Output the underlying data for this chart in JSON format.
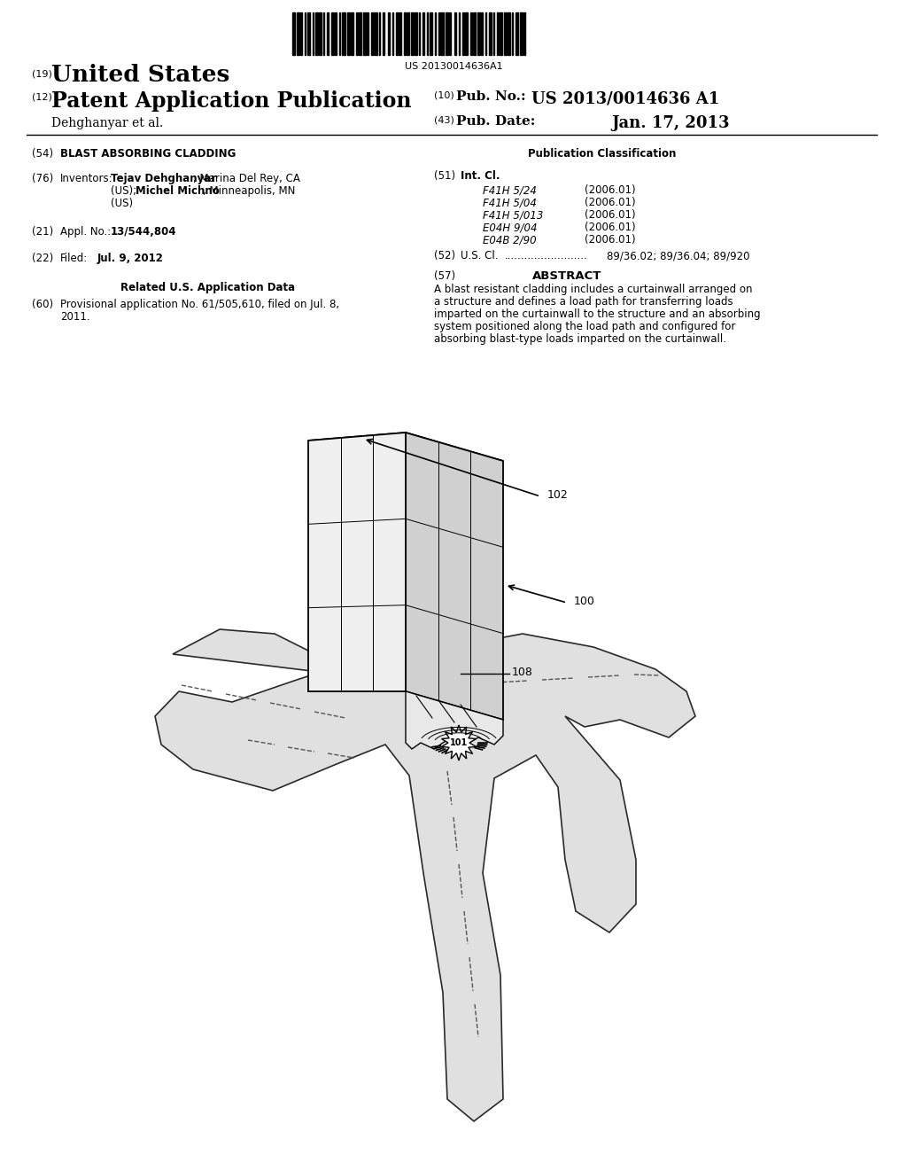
{
  "bg_color": "#ffffff",
  "barcode_text": "US 20130014636A1",
  "header_us": "United States",
  "header_patent": "Patent Application Publication",
  "header_pub_no": "US 2013/0014636 A1",
  "header_author": "Dehghanyar et al.",
  "header_date": "Jan. 17, 2013",
  "field54_title": "BLAST ABSORBING CLADDING",
  "pub_class_title": "Publication Classification",
  "field76_inv1_bold": "Tejav Dehghanyar",
  "field76_inv1_rest": ", Marina Del Rey, CA",
  "field76_inv2_pre": "(US); ",
  "field76_inv2_bold": "Michel Michno",
  "field76_inv2_rest": ", Minneapolis, MN",
  "field76_inv3": "(US)",
  "field51_classes": [
    [
      "F41H 5/24",
      "(2006.01)"
    ],
    [
      "F41H 5/04",
      "(2006.01)"
    ],
    [
      "F41H 5/013",
      "(2006.01)"
    ],
    [
      "E04H 9/04",
      "(2006.01)"
    ],
    [
      "E04B 2/90",
      "(2006.01)"
    ]
  ],
  "field21_value": "13/544,804",
  "field52_value": "89/36.02; 89/36.04; 89/920",
  "field22_value": "Jul. 9, 2012",
  "field57_text": "A blast resistant cladding includes a curtainwall arranged on a structure and defines a load path for transferring loads imparted on the curtainwall to the structure and an absorbing system positioned along the load path and configured for absorbing blast-type loads imparted on the curtainwall.",
  "related_title": "Related U.S. Application Data",
  "field60_text": "Provisional application No. 61/505,610, filed on Jul. 8, 2011.",
  "label_100": "100",
  "label_101": "101",
  "label_102": "102",
  "label_108": "108",
  "road_color": "#e0e0e0",
  "road_edge": "#2a2a2a",
  "building_left_face_color": "#f0f0f0",
  "building_right_face_color": "#d0d0d0",
  "building_top_face_color": "#c0c0c0"
}
